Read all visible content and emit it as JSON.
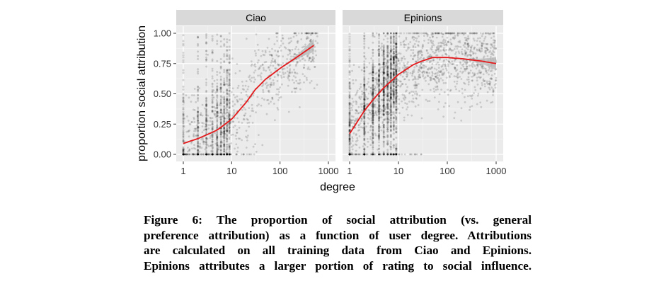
{
  "figure": {
    "xlabel": "degree",
    "ylabel": "proportion social attribution",
    "caption_lines": [
      "Figure 6:  The proportion of social attribution (vs.  general",
      "preference attribution) as a function of user degree. Attributions",
      "are calculated on all training data from Ciao and Epinions.",
      "Epinions attributes a larger portion of rating to social influence."
    ],
    "colors": {
      "panel_bg": "#ebebeb",
      "strip_bg": "#d9d9d9",
      "grid": "#ffffff",
      "points": "#000000",
      "smooth_line": "#e41a1c",
      "ribbon": "#b3b3b3"
    }
  },
  "chart_data": [
    {
      "type": "scatter",
      "title": "Ciao",
      "xlabel": "degree",
      "ylabel": "proportion social attribution",
      "x_scale": "log10",
      "xlim": [
        1,
        1000
      ],
      "ylim": [
        0,
        1
      ],
      "x_ticks": [
        "1",
        "10",
        "100",
        "1000"
      ],
      "y_ticks": [
        "0.00",
        "0.25",
        "0.50",
        "0.75",
        "1.00"
      ],
      "grid": true,
      "point_cloud": {
        "alpha": 0.15,
        "description_x_range": [
          1,
          600
        ]
      },
      "smooth_curve": {
        "x": [
          1,
          2,
          3,
          5,
          10,
          20,
          30,
          50,
          100,
          200,
          500
        ],
        "y": [
          0.09,
          0.13,
          0.16,
          0.2,
          0.29,
          0.43,
          0.53,
          0.62,
          0.71,
          0.79,
          0.9
        ]
      }
    },
    {
      "type": "scatter",
      "title": "Epinions",
      "xlabel": "degree",
      "ylabel": "proportion social attribution",
      "x_scale": "log10",
      "xlim": [
        1,
        1000
      ],
      "ylim": [
        0,
        1
      ],
      "x_ticks": [
        "1",
        "10",
        "100",
        "1000"
      ],
      "y_ticks": [
        "0.00",
        "0.25",
        "0.50",
        "0.75",
        "1.00"
      ],
      "grid": true,
      "point_cloud": {
        "alpha": 0.15,
        "description_x_range": [
          1,
          1000
        ]
      },
      "smooth_curve": {
        "x": [
          1,
          2,
          3,
          5,
          10,
          20,
          30,
          50,
          100,
          200,
          500,
          1000
        ],
        "y": [
          0.17,
          0.36,
          0.45,
          0.55,
          0.66,
          0.74,
          0.77,
          0.8,
          0.8,
          0.79,
          0.77,
          0.75
        ]
      }
    }
  ]
}
